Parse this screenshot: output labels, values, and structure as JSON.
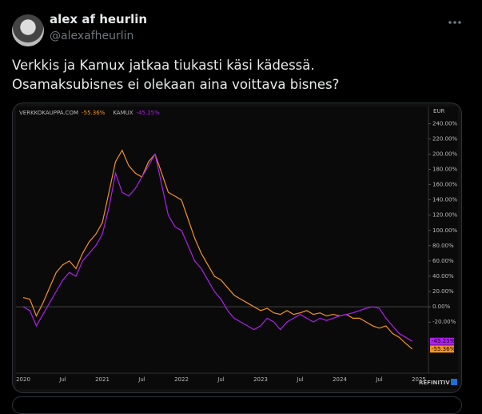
{
  "tweet": {
    "author": {
      "name": "alex af heurlin",
      "handle": "@alexafheurlin"
    },
    "text": [
      "Verkkis ja Kamux jatkaa tiukasti käsi kädessä.",
      "Osamaksubisnes ei olekaan aina voittava bisnes?"
    ]
  },
  "chart_data": {
    "type": "line",
    "currency": "EUR",
    "source": "REFINITIV",
    "categories": [
      "2020",
      null,
      null,
      null,
      null,
      null,
      "Jul",
      null,
      null,
      null,
      null,
      null,
      "2021",
      null,
      null,
      null,
      null,
      null,
      "Jul",
      null,
      null,
      null,
      null,
      null,
      "2022",
      null,
      null,
      null,
      null,
      null,
      "Jul",
      null,
      null,
      null,
      null,
      null,
      "2023",
      null,
      null,
      null,
      null,
      null,
      "Jul",
      null,
      null,
      null,
      null,
      null,
      "2024",
      null,
      null,
      null,
      null,
      null,
      "Jul",
      null,
      null,
      null,
      null,
      null,
      "2025"
    ],
    "series": [
      {
        "name": "VERKKOKAUPPA.COM",
        "color": "#f7931e",
        "end_label": "-55.36%",
        "values": [
          12,
          10,
          -12,
          5,
          25,
          45,
          55,
          60,
          50,
          70,
          85,
          95,
          110,
          150,
          190,
          205,
          185,
          175,
          170,
          190,
          200,
          175,
          150,
          145,
          140,
          115,
          90,
          70,
          55,
          40,
          35,
          25,
          15,
          10,
          5,
          0,
          -5,
          -2,
          -8,
          -10,
          -5,
          -10,
          -8,
          -5,
          -10,
          -8,
          -12,
          -10,
          -12,
          -10,
          -15,
          -15,
          -20,
          -25,
          -28,
          -25,
          -35,
          -40,
          -48,
          -55.36,
          null
        ]
      },
      {
        "name": "KAMUX",
        "color": "#b01ef0",
        "end_label": "-45.25%",
        "values": [
          0,
          -5,
          -25,
          -10,
          5,
          20,
          35,
          45,
          40,
          60,
          70,
          80,
          95,
          130,
          175,
          150,
          145,
          155,
          170,
          185,
          200,
          160,
          120,
          105,
          100,
          80,
          60,
          50,
          35,
          20,
          10,
          -5,
          -15,
          -20,
          -25,
          -30,
          -25,
          -15,
          -20,
          -30,
          -20,
          -15,
          -10,
          -15,
          -20,
          -15,
          -18,
          -15,
          -12,
          -10,
          -8,
          -5,
          -2,
          0,
          -2,
          -15,
          -25,
          -35,
          -40,
          -45.25,
          null
        ]
      }
    ],
    "ylim": [
      -87,
      254
    ],
    "yticks": [
      {
        "value": -20,
        "label": "-20.00%"
      },
      {
        "value": 0,
        "label": "0.00%"
      },
      {
        "value": 20,
        "label": "20.00%"
      },
      {
        "value": 40,
        "label": "40.00%"
      },
      {
        "value": 60,
        "label": "60.00%"
      },
      {
        "value": 80,
        "label": "80.00%"
      },
      {
        "value": 100,
        "label": "100.00%"
      },
      {
        "value": 120,
        "label": "120.00%"
      },
      {
        "value": 140,
        "label": "140.00%"
      },
      {
        "value": 160,
        "label": "160.00%"
      },
      {
        "value": 180,
        "label": "180.00%"
      },
      {
        "value": 200,
        "label": "200.00%"
      },
      {
        "value": 220,
        "label": "220.00%"
      },
      {
        "value": 240,
        "label": "240.00%"
      }
    ],
    "zero_line": true,
    "grid": false
  }
}
